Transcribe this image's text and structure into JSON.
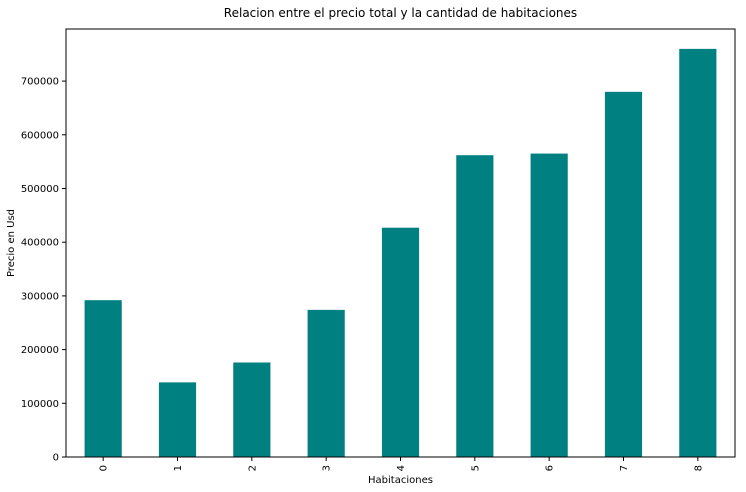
{
  "chart_data": {
    "type": "bar",
    "title": "Relacion entre el precio total y la cantidad de habitaciones",
    "xlabel": "Habitaciones",
    "ylabel": "Precio en Usd",
    "categories": [
      "0",
      "1",
      "2",
      "3",
      "4",
      "5",
      "6",
      "7",
      "8"
    ],
    "values": [
      292000,
      139000,
      176000,
      274000,
      427000,
      562000,
      565000,
      680000,
      760000
    ],
    "ylim": [
      0,
      797000
    ],
    "yticks": [
      0,
      100000,
      200000,
      300000,
      400000,
      500000,
      600000,
      700000
    ],
    "bar_color": "#008080",
    "grid": false,
    "legend": "none"
  }
}
